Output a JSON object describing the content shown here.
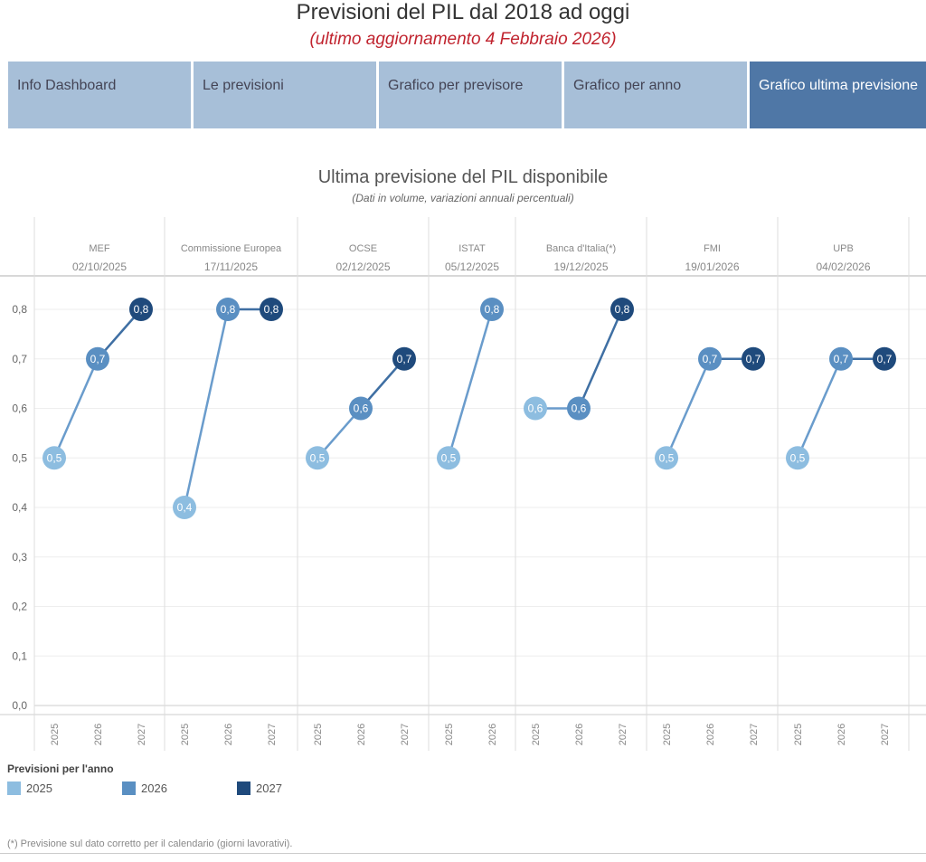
{
  "header": {
    "title": "Previsioni del PIL dal 2018 ad oggi",
    "subtitle": "(ultimo aggiornamento  4 Febbraio  2026)"
  },
  "tabs": [
    {
      "label": "Info Dashboard"
    },
    {
      "label": "Le previsioni"
    },
    {
      "label": "Grafico per previsore"
    },
    {
      "label": "Grafico per anno"
    },
    {
      "label": "Grafico ultima previsione",
      "active": true
    }
  ],
  "chart_data": {
    "type": "line",
    "title": "Ultima previsione del PIL disponibile",
    "subtitle": "(Dati in volume, variazioni annuali percentuali)",
    "ylim": [
      0,
      0.8
    ],
    "yticks": [
      "0,0",
      "0,1",
      "0,2",
      "0,3",
      "0,4",
      "0,5",
      "0,6",
      "0,7",
      "0,8"
    ],
    "grid": true,
    "colors": {
      "2025": "#8dbde0",
      "2026": "#5a8fc2",
      "2027": "#1f4a7c"
    },
    "panels": [
      {
        "name": "MEF",
        "date": "02/10/2025",
        "years": [
          "2025",
          "2026",
          "2027"
        ],
        "values": [
          0.5,
          0.7,
          0.8
        ],
        "labels": [
          "0,5",
          "0,7",
          "0,8"
        ]
      },
      {
        "name": "Commissione Europea",
        "date": "17/11/2025",
        "years": [
          "2025",
          "2026",
          "2027"
        ],
        "values": [
          0.4,
          0.8,
          0.8
        ],
        "labels": [
          "0,4",
          "0,8",
          "0,8"
        ]
      },
      {
        "name": "OCSE",
        "date": "02/12/2025",
        "years": [
          "2025",
          "2026",
          "2027"
        ],
        "values": [
          0.5,
          0.6,
          0.7
        ],
        "labels": [
          "0,5",
          "0,6",
          "0,7"
        ]
      },
      {
        "name": "ISTAT",
        "date": "05/12/2025",
        "years": [
          "2025",
          "2026"
        ],
        "values": [
          0.5,
          0.8
        ],
        "labels": [
          "0,5",
          "0,8"
        ]
      },
      {
        "name": "Banca d'Italia(*)",
        "date": "19/12/2025",
        "years": [
          "2025",
          "2026",
          "2027"
        ],
        "values": [
          0.6,
          0.6,
          0.8
        ],
        "labels": [
          "0,6",
          "0,6",
          "0,8"
        ]
      },
      {
        "name": "FMI",
        "date": "19/01/2026",
        "years": [
          "2025",
          "2026",
          "2027"
        ],
        "values": [
          0.5,
          0.7,
          0.7
        ],
        "labels": [
          "0,5",
          "0,7",
          "0,7"
        ]
      },
      {
        "name": "UPB",
        "date": "04/02/2026",
        "years": [
          "2025",
          "2026",
          "2027"
        ],
        "values": [
          0.5,
          0.7,
          0.7
        ],
        "labels": [
          "0,5",
          "0,7",
          "0,7"
        ]
      }
    ],
    "legend": {
      "title": "Previsioni per l'anno",
      "entries": [
        "2025",
        "2026",
        "2027"
      ],
      "placement": "bottom-left"
    },
    "footnote": "(*) Previsione sul dato corretto per il calendario (giorni lavorativi)."
  }
}
